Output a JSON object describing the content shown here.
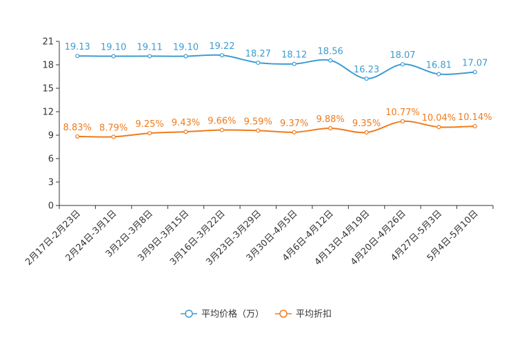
{
  "chart_data": {
    "type": "line",
    "title": "",
    "xlabel": "",
    "ylabel": "",
    "ylim": [
      0,
      21
    ],
    "yticks": [
      0,
      3,
      6,
      9,
      12,
      15,
      18,
      21
    ],
    "grid": false,
    "legend_position": "bottom-center",
    "categories": [
      "2月17日-2月23日",
      "2月24日-3月1日",
      "3月2日-3月8日",
      "3月9日-3月15日",
      "3月16日-3月22日",
      "3月23日-3月29日",
      "3月30日-4月5日",
      "4月6日-4月12日",
      "4月13日-4月19日",
      "4月20日-4月26日",
      "4月27日-5月3日",
      "5月4日-5月10日"
    ],
    "series": [
      {
        "name": "平均价格（万）",
        "color": "#3d9bd2",
        "values": [
          19.13,
          19.1,
          19.11,
          19.1,
          19.22,
          18.27,
          18.12,
          18.56,
          16.23,
          18.07,
          16.81,
          17.07
        ],
        "labels": [
          "19.13",
          "19.10",
          "19.11",
          "19.10",
          "19.22",
          "18.27",
          "18.12",
          "18.56",
          "16.23",
          "18.07",
          "16.81",
          "17.07"
        ]
      },
      {
        "name": "平均折扣",
        "color": "#f07a1a",
        "values": [
          8.83,
          8.79,
          9.25,
          9.43,
          9.66,
          9.59,
          9.37,
          9.88,
          9.35,
          10.77,
          10.04,
          10.14
        ],
        "labels": [
          "8.83%",
          "8.79%",
          "9.25%",
          "9.43%",
          "9.66%",
          "9.59%",
          "9.37%",
          "9.88%",
          "9.35%",
          "10.77%",
          "10.04%",
          "10.14%"
        ]
      }
    ]
  }
}
